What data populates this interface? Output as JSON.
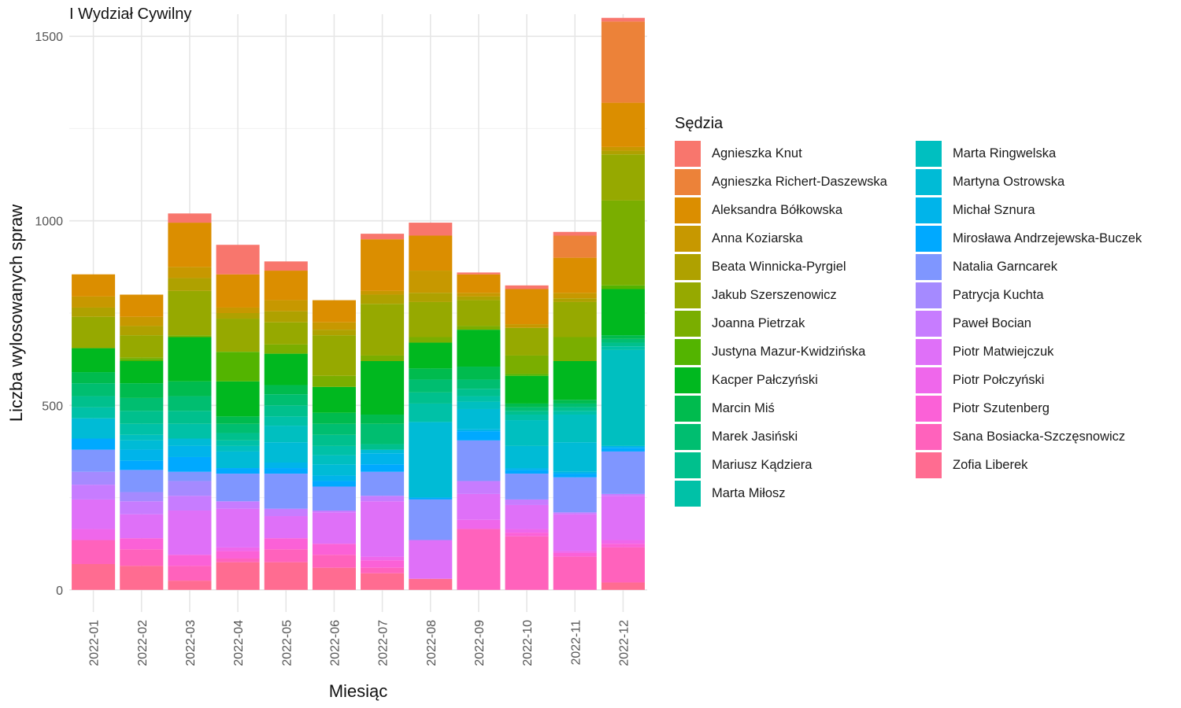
{
  "chart_data": {
    "type": "bar",
    "stacked": true,
    "title": "I Wydział Cywilny",
    "xlabel": "Miesiąc",
    "ylabel": "Liczba wylosowanych spraw",
    "ylim": [
      -60,
      1560
    ],
    "yticks": [
      0,
      500,
      1000,
      1500
    ],
    "grid": true,
    "legend_title": "Sędzia",
    "legend_position": "right",
    "categories": [
      "2022-01",
      "2022-02",
      "2022-03",
      "2022-04",
      "2022-05",
      "2022-06",
      "2022-07",
      "2022-08",
      "2022-09",
      "2022-10",
      "2022-11",
      "2022-12"
    ],
    "series": [
      {
        "name": "Agnieszka Knut",
        "color": "#F8766D",
        "values": [
          0,
          0,
          25,
          80,
          25,
          0,
          15,
          35,
          5,
          10,
          10,
          10
        ]
      },
      {
        "name": "Agnieszka Richert-Daszewska",
        "color": "#EC8239",
        "values": [
          0,
          0,
          0,
          0,
          0,
          0,
          0,
          0,
          0,
          0,
          60,
          220
        ]
      },
      {
        "name": "Aleksandra Bółkowska",
        "color": "#DB8E00",
        "values": [
          60,
          60,
          120,
          90,
          80,
          60,
          140,
          95,
          50,
          95,
          95,
          120
        ]
      },
      {
        "name": "Anna Koziarska",
        "color": "#C79800",
        "values": [
          30,
          25,
          30,
          15,
          30,
          20,
          10,
          60,
          10,
          10,
          15,
          10
        ]
      },
      {
        "name": "Beata Winnicka-Pyrgiel",
        "color": "#AFA100",
        "values": [
          25,
          25,
          35,
          15,
          30,
          15,
          25,
          25,
          10,
          0,
          10,
          10
        ]
      },
      {
        "name": "Jakub Szerszenowicz",
        "color": "#96A900",
        "values": [
          85,
          60,
          120,
          90,
          60,
          110,
          140,
          95,
          70,
          75,
          95,
          125
        ]
      },
      {
        "name": "Joanna Pietrzak",
        "color": "#7AAE00",
        "values": [
          0,
          5,
          5,
          0,
          25,
          30,
          15,
          15,
          10,
          50,
          65,
          230
        ]
      },
      {
        "name": "Justyna Mazur-Kwidzińska",
        "color": "#53B400",
        "values": [
          0,
          5,
          0,
          80,
          0,
          0,
          0,
          0,
          0,
          5,
          0,
          10
        ]
      },
      {
        "name": "Kacper Pałczyński",
        "color": "#00B81F",
        "values": [
          65,
          60,
          120,
          95,
          85,
          70,
          145,
          70,
          100,
          75,
          105,
          125
        ]
      },
      {
        "name": "Marcin Miś",
        "color": "#00BB4E",
        "values": [
          30,
          40,
          40,
          20,
          25,
          30,
          25,
          30,
          35,
          10,
          10,
          10
        ]
      },
      {
        "name": "Marek Jasiński",
        "color": "#00BE70",
        "values": [
          35,
          35,
          40,
          25,
          30,
          30,
          55,
          35,
          25,
          10,
          10,
          10
        ]
      },
      {
        "name": "Mariusz Kądziera",
        "color": "#00C08D",
        "values": [
          30,
          35,
          35,
          20,
          30,
          30,
          15,
          30,
          20,
          10,
          10,
          10
        ]
      },
      {
        "name": "Marta Miłosz",
        "color": "#00C1A7",
        "values": [
          30,
          30,
          40,
          15,
          25,
          25,
          0,
          50,
          15,
          15,
          10,
          10
        ]
      },
      {
        "name": "Marta Ringwelska",
        "color": "#00BFC0",
        "values": [
          0,
          15,
          0,
          15,
          45,
          25,
          0,
          0,
          20,
          70,
          75,
          260
        ]
      },
      {
        "name": "Martyna Ostrowska",
        "color": "#00BBD6",
        "values": [
          55,
          25,
          20,
          45,
          55,
          30,
          10,
          205,
          55,
          60,
          80,
          0
        ]
      },
      {
        "name": "Michał Sznura",
        "color": "#00B4EA",
        "values": [
          0,
          30,
          30,
          0,
          15,
          15,
          30,
          0,
          5,
          5,
          5,
          5
        ]
      },
      {
        "name": "Mirosława Andrzejewska-Buczek",
        "color": "#00A9FF",
        "values": [
          30,
          25,
          40,
          15,
          15,
          15,
          20,
          5,
          25,
          10,
          10,
          10
        ]
      },
      {
        "name": "Natalia Garncarek",
        "color": "#7F96FF",
        "values": [
          60,
          60,
          25,
          75,
          95,
          65,
          65,
          110,
          110,
          70,
          95,
          115
        ]
      },
      {
        "name": "Patrycja Kuchta",
        "color": "#A58AFF",
        "values": [
          35,
          25,
          40,
          0,
          0,
          0,
          0,
          0,
          0,
          0,
          0,
          0
        ]
      },
      {
        "name": "Paweł Bocian",
        "color": "#C77CFF",
        "values": [
          40,
          35,
          40,
          20,
          20,
          5,
          15,
          0,
          35,
          15,
          5,
          5
        ]
      },
      {
        "name": "Piotr Matwiejczuk",
        "color": "#DF70F8",
        "values": [
          80,
          65,
          120,
          105,
          60,
          85,
          150,
          105,
          70,
          65,
          100,
          120
        ]
      },
      {
        "name": "Piotr Połczyński",
        "color": "#EF67EB",
        "values": [
          30,
          0,
          0,
          10,
          0,
          0,
          10,
          0,
          25,
          10,
          5,
          10
        ]
      },
      {
        "name": "Piotr Szutenberg",
        "color": "#FB61D7",
        "values": [
          0,
          30,
          30,
          20,
          30,
          30,
          20,
          0,
          0,
          10,
          10,
          10
        ]
      },
      {
        "name": "Sana Bosiacka-Szczęsnowicz",
        "color": "#FF62BC",
        "values": [
          65,
          45,
          40,
          10,
          35,
          35,
          15,
          0,
          165,
          145,
          90,
          95
        ]
      },
      {
        "name": "Zofia Liberek",
        "color": "#FF6C91",
        "values": [
          70,
          65,
          25,
          75,
          75,
          60,
          45,
          30,
          0,
          0,
          0,
          20
        ]
      }
    ]
  }
}
